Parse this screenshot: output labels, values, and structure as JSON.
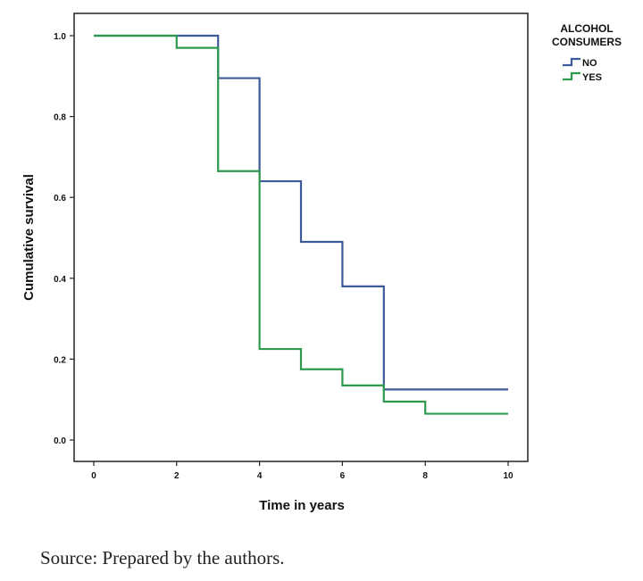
{
  "chart_data": {
    "type": "line",
    "step": true,
    "xlabel": "Time in years",
    "ylabel": "Cumulative survival",
    "xlim": [
      0,
      10
    ],
    "ylim": [
      0,
      1.0
    ],
    "x_ticks": [
      0,
      2,
      4,
      6,
      8,
      10
    ],
    "y_ticks": [
      0.0,
      0.2,
      0.4,
      0.6,
      0.8,
      1.0
    ],
    "x_tick_labels": [
      "0",
      "2",
      "4",
      "6",
      "8",
      "10"
    ],
    "y_tick_labels": [
      "0.0",
      "0.2",
      "0.4",
      "0.6",
      "0.8",
      "1.0"
    ],
    "grid": false,
    "legend_title_line1": "ALCOHOL",
    "legend_title_line2": "CONSUMERS",
    "legend_position": "outside-top-right",
    "series": [
      {
        "name": "NO",
        "color": "#3d5a99",
        "x": [
          0,
          3,
          4,
          5,
          6,
          7,
          10
        ],
        "y": [
          1.0,
          0.895,
          0.64,
          0.49,
          0.38,
          0.125,
          0.125
        ]
      },
      {
        "name": "YES",
        "color": "#2e9a4e",
        "x": [
          0,
          2,
          3,
          4,
          5,
          6,
          7,
          8,
          10
        ],
        "y": [
          1.0,
          0.97,
          0.665,
          0.225,
          0.175,
          0.135,
          0.095,
          0.065,
          0.065
        ]
      }
    ]
  },
  "caption": "Source: Prepared by the authors."
}
